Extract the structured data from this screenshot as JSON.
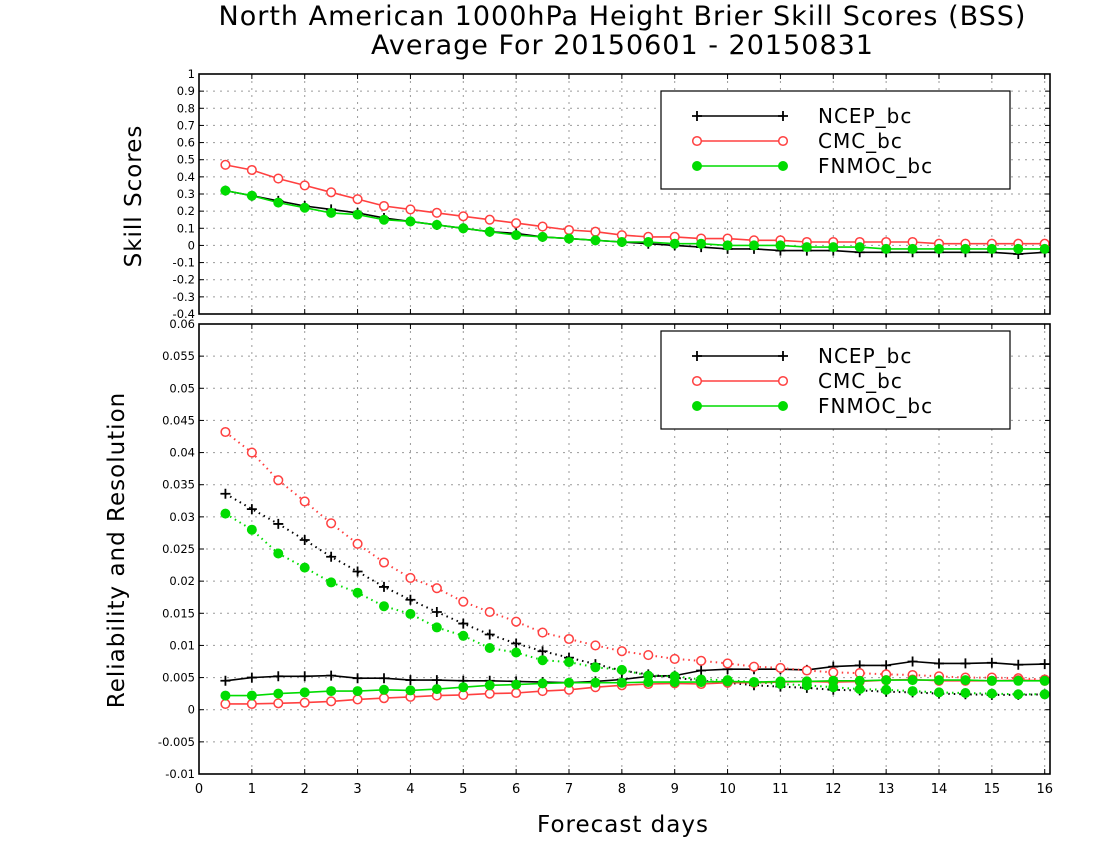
{
  "title_line1": "North American 1000hPa Height Brier Skill Scores (BSS)",
  "title_line2": "Average For 20150601 - 20150831",
  "colors": {
    "NCEP_bc": "#000000",
    "CMC_bc": "#ff4040",
    "FNMOC_bc": "#00dc00",
    "grid": "#9a9a9a"
  },
  "chart_data": [
    {
      "type": "line",
      "panel": "top",
      "ylabel": "Skill Scores",
      "xlabel": "",
      "xlim": [
        0,
        16.1
      ],
      "ylim": [
        -0.4,
        1
      ],
      "yticks": [
        "-0.4",
        "-0.3",
        "-0.2",
        "-0.1",
        "0",
        "0.1",
        "0.2",
        "0.3",
        "0.4",
        "0.5",
        "0.6",
        "0.7",
        "0.8",
        "0.9",
        "1"
      ],
      "grid": true,
      "legend": "top-right",
      "x": [
        0.5,
        1,
        1.5,
        2,
        2.5,
        3,
        3.5,
        4,
        4.5,
        5,
        5.5,
        6,
        6.5,
        7,
        7.5,
        8,
        8.5,
        9,
        9.5,
        10,
        10.5,
        11,
        11.5,
        12,
        12.5,
        13,
        13.5,
        14,
        14.5,
        15,
        15.5,
        16
      ],
      "series": [
        {
          "name": "NCEP_bc",
          "marker": "plus",
          "style": "solid",
          "values": [
            0.32,
            0.29,
            0.26,
            0.23,
            0.21,
            0.19,
            0.16,
            0.14,
            0.12,
            0.1,
            0.08,
            0.07,
            0.05,
            0.04,
            0.03,
            0.02,
            0.01,
            0.0,
            -0.01,
            -0.02,
            -0.02,
            -0.03,
            -0.03,
            -0.03,
            -0.04,
            -0.04,
            -0.04,
            -0.04,
            -0.04,
            -0.04,
            -0.05,
            -0.04
          ]
        },
        {
          "name": "CMC_bc",
          "marker": "open-circle",
          "style": "solid",
          "values": [
            0.47,
            0.44,
            0.39,
            0.35,
            0.31,
            0.27,
            0.23,
            0.21,
            0.19,
            0.17,
            0.15,
            0.13,
            0.11,
            0.09,
            0.08,
            0.06,
            0.05,
            0.05,
            0.04,
            0.04,
            0.03,
            0.03,
            0.02,
            0.02,
            0.02,
            0.02,
            0.02,
            0.01,
            0.01,
            0.01,
            0.01,
            0.01
          ]
        },
        {
          "name": "FNMOC_bc",
          "marker": "filled-circle",
          "style": "solid",
          "values": [
            0.32,
            0.29,
            0.25,
            0.22,
            0.19,
            0.18,
            0.15,
            0.14,
            0.12,
            0.1,
            0.08,
            0.06,
            0.05,
            0.04,
            0.03,
            0.02,
            0.02,
            0.01,
            0.01,
            0.0,
            0.0,
            0.0,
            -0.01,
            -0.01,
            -0.01,
            -0.02,
            -0.02,
            -0.02,
            -0.02,
            -0.02,
            -0.02,
            -0.02
          ]
        }
      ]
    },
    {
      "type": "line",
      "panel": "bottom",
      "ylabel": "Reliability and Resolution",
      "xlabel": "Forecast days",
      "xlim": [
        0,
        16.1
      ],
      "ylim": [
        -0.01,
        0.06
      ],
      "yticks": [
        "-0.01",
        "-0.005",
        "0",
        "0.005",
        "0.01",
        "0.015",
        "0.02",
        "0.025",
        "0.03",
        "0.035",
        "0.04",
        "0.045",
        "0.05",
        "0.055",
        "0.06"
      ],
      "xticks": [
        "0",
        "1",
        "2",
        "3",
        "4",
        "5",
        "6",
        "7",
        "8",
        "9",
        "10",
        "11",
        "12",
        "13",
        "14",
        "15",
        "16"
      ],
      "grid": true,
      "legend": "top-right",
      "x": [
        0.5,
        1,
        1.5,
        2,
        2.5,
        3,
        3.5,
        4,
        4.5,
        5,
        5.5,
        6,
        6.5,
        7,
        7.5,
        8,
        8.5,
        9,
        9.5,
        10,
        10.5,
        11,
        11.5,
        12,
        12.5,
        13,
        13.5,
        14,
        14.5,
        15,
        15.5,
        16
      ],
      "series": [
        {
          "name": "NCEP_bc",
          "marker": "plus",
          "style": "dotted",
          "role": "reliability",
          "values": [
            0.0336,
            0.0312,
            0.0289,
            0.0264,
            0.0238,
            0.0215,
            0.0191,
            0.0171,
            0.0152,
            0.0134,
            0.0117,
            0.0103,
            0.0091,
            0.0081,
            0.0071,
            0.0061,
            0.0055,
            0.005,
            0.0045,
            0.0042,
            0.0038,
            0.0036,
            0.0034,
            0.0031,
            0.003,
            0.0028,
            0.0027,
            0.0025,
            0.0024,
            0.0023,
            0.0023,
            0.0024
          ]
        },
        {
          "name": "NCEP_bc",
          "marker": "plus",
          "style": "solid",
          "role": "resolution",
          "values": [
            0.0045,
            0.005,
            0.0052,
            0.0052,
            0.0053,
            0.0049,
            0.0049,
            0.0046,
            0.0046,
            0.0045,
            0.0045,
            0.0044,
            0.0043,
            0.0042,
            0.0044,
            0.0047,
            0.0052,
            0.0053,
            0.0061,
            0.0063,
            0.0063,
            0.0063,
            0.0062,
            0.0067,
            0.0069,
            0.0069,
            0.0075,
            0.0072,
            0.0072,
            0.0073,
            0.007,
            0.0071
          ]
        },
        {
          "name": "CMC_bc",
          "marker": "open-circle",
          "style": "dotted",
          "role": "reliability",
          "values": [
            0.0432,
            0.04,
            0.0357,
            0.0324,
            0.029,
            0.0258,
            0.0229,
            0.0205,
            0.0189,
            0.0168,
            0.0152,
            0.0137,
            0.012,
            0.011,
            0.01,
            0.0091,
            0.0085,
            0.0079,
            0.0076,
            0.0072,
            0.0067,
            0.0065,
            0.0061,
            0.0058,
            0.0057,
            0.0055,
            0.0054,
            0.0052,
            0.005,
            0.005,
            0.0049,
            0.0047
          ]
        },
        {
          "name": "CMC_bc",
          "marker": "open-circle",
          "style": "solid",
          "role": "resolution",
          "values": [
            0.0009,
            0.0009,
            0.001,
            0.0011,
            0.0013,
            0.0016,
            0.0018,
            0.002,
            0.0022,
            0.0023,
            0.0025,
            0.0026,
            0.0029,
            0.0031,
            0.0035,
            0.0038,
            0.004,
            0.0041,
            0.004,
            0.0042,
            0.0042,
            0.0043,
            0.0044,
            0.0043,
            0.0044,
            0.0046,
            0.0047,
            0.0045,
            0.0045,
            0.0045,
            0.0046,
            0.0045
          ]
        },
        {
          "name": "FNMOC_bc",
          "marker": "filled-circle",
          "style": "dotted",
          "role": "reliability",
          "values": [
            0.0305,
            0.028,
            0.0243,
            0.0221,
            0.0198,
            0.0182,
            0.0161,
            0.0149,
            0.0128,
            0.0115,
            0.0096,
            0.0089,
            0.0077,
            0.0074,
            0.0066,
            0.0062,
            0.0053,
            0.0052,
            0.0047,
            0.0046,
            0.0043,
            0.004,
            0.0038,
            0.0035,
            0.0032,
            0.0031,
            0.0029,
            0.0027,
            0.0026,
            0.0025,
            0.0024,
            0.0024
          ]
        },
        {
          "name": "FNMOC_bc",
          "marker": "filled-circle",
          "style": "solid",
          "role": "resolution",
          "values": [
            0.0022,
            0.0022,
            0.0025,
            0.0027,
            0.0029,
            0.0029,
            0.0031,
            0.003,
            0.0032,
            0.0035,
            0.0038,
            0.0039,
            0.0041,
            0.0042,
            0.0042,
            0.0042,
            0.0043,
            0.0043,
            0.0043,
            0.0044,
            0.0043,
            0.0044,
            0.0044,
            0.0045,
            0.0045,
            0.0046,
            0.0046,
            0.0046,
            0.0046,
            0.0045,
            0.0045,
            0.0045
          ]
        }
      ]
    }
  ]
}
